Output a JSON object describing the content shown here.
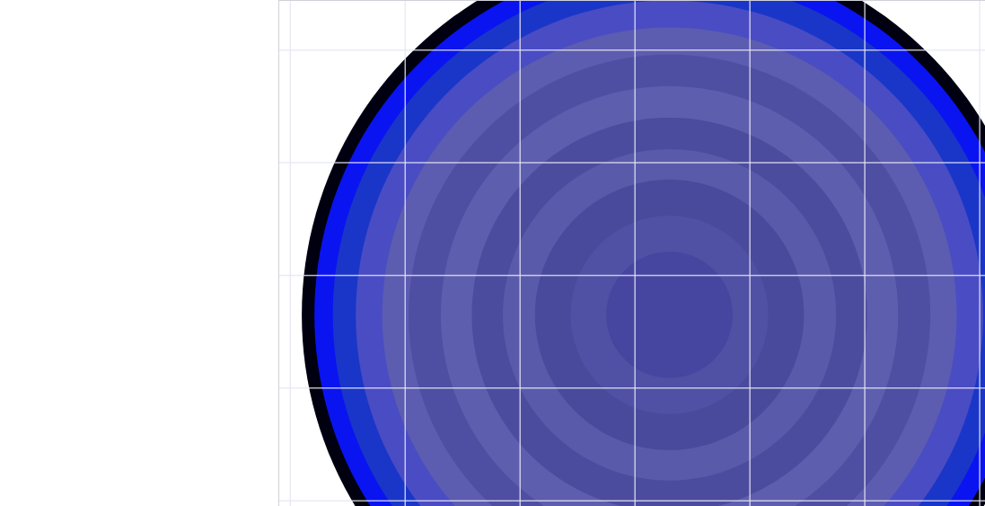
{
  "chart_data": {
    "type": "rings",
    "center": [
      3.3,
      1.65
    ],
    "rings": [
      {
        "rx": 3.2,
        "ry": 3.27,
        "color": "#000010"
      },
      {
        "rx": 3.09,
        "ry": 3.15,
        "color": "#0a14f0"
      },
      {
        "rx": 2.93,
        "ry": 2.99,
        "color": "#1a36c8"
      },
      {
        "rx": 2.73,
        "ry": 2.79,
        "color": "#4a4cc4"
      },
      {
        "rx": 2.5,
        "ry": 2.55,
        "color": "#5c5cb0"
      },
      {
        "rx": 2.27,
        "ry": 2.31,
        "color": "#4e4ea2"
      },
      {
        "rx": 1.99,
        "ry": 2.03,
        "color": "#5e5eae"
      },
      {
        "rx": 1.72,
        "ry": 1.75,
        "color": "#4c4c9e"
      },
      {
        "rx": 1.45,
        "ry": 1.47,
        "color": "#5a5aaa"
      },
      {
        "rx": 1.17,
        "ry": 1.2,
        "color": "#4a4a9c"
      },
      {
        "rx": 0.86,
        "ry": 0.88,
        "color": "#5050a4"
      },
      {
        "rx": 0.55,
        "ry": 0.56,
        "color": "#4646a0"
      }
    ],
    "xlim": [
      -0.1,
      6.05
    ],
    "ylim": [
      -0.05,
      4.44
    ],
    "xticks": [
      0,
      1,
      2,
      3,
      4,
      5,
      6
    ],
    "yticks": [
      0,
      1,
      2,
      3,
      4
    ],
    "grid": true,
    "tick_labels": false
  }
}
